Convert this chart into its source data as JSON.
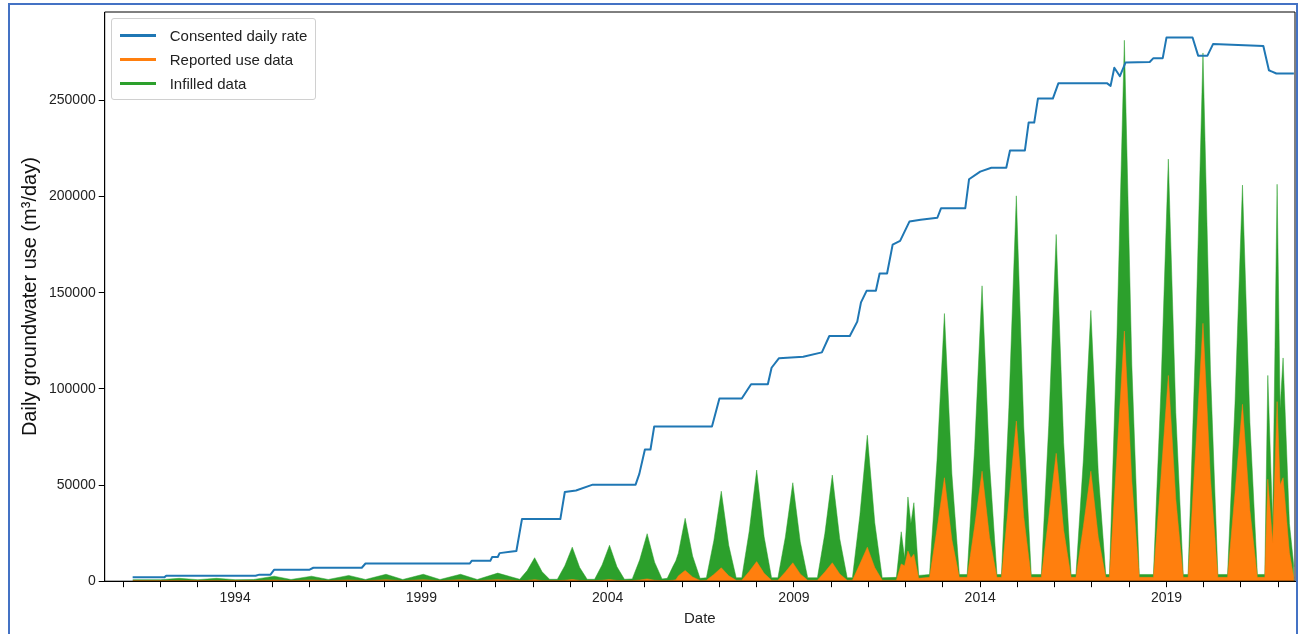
{
  "chart_data": {
    "type": "line",
    "xlabel": "Date",
    "ylabel": "Daily groundwater use (m³/day)",
    "xlim": [
      1990.5,
      2022.45
    ],
    "ylim": [
      0,
      296000
    ],
    "xticks": [
      {
        "value": 1991,
        "label": null
      },
      {
        "value": 1992,
        "label": null
      },
      {
        "value": 1993,
        "label": null
      },
      1994,
      {
        "value": 1995,
        "label": null
      },
      {
        "value": 1996,
        "label": null
      },
      {
        "value": 1997,
        "label": null
      },
      {
        "value": 1998,
        "label": null
      },
      1999,
      {
        "value": 2000,
        "label": null
      },
      {
        "value": 2001,
        "label": null
      },
      {
        "value": 2002,
        "label": null
      },
      {
        "value": 2003,
        "label": null
      },
      2004,
      {
        "value": 2005,
        "label": null
      },
      {
        "value": 2006,
        "label": null
      },
      {
        "value": 2007,
        "label": null
      },
      {
        "value": 2008,
        "label": null
      },
      2009,
      {
        "value": 2010,
        "label": null
      },
      {
        "value": 2011,
        "label": null
      },
      {
        "value": 2012,
        "label": null
      },
      {
        "value": 2013,
        "label": null
      },
      2014,
      {
        "value": 2015,
        "label": null
      },
      {
        "value": 2016,
        "label": null
      },
      {
        "value": 2017,
        "label": null
      },
      {
        "value": 2018,
        "label": null
      },
      2019,
      {
        "value": 2020,
        "label": null
      },
      {
        "value": 2021,
        "label": null
      },
      {
        "value": 2022,
        "label": null
      }
    ],
    "yticks": [
      0,
      50000,
      100000,
      150000,
      200000,
      250000
    ],
    "legend": "top left",
    "x": [
      1991.25,
      1992.0,
      1992.5,
      1993.0,
      1993.5,
      1994.0,
      1994.5,
      1995.05,
      1995.5,
      1996.05,
      1996.5,
      1997.05,
      1997.5,
      1998.05,
      1998.5,
      1999.05,
      1999.5,
      2000.05,
      2000.5,
      2001.05,
      2001.64,
      2001.84,
      2002.04,
      2002.24,
      2002.44,
      2002.65,
      2002.85,
      2003.05,
      2003.25,
      2003.45,
      2003.65,
      2003.85,
      2004.05,
      2004.25,
      2004.45,
      2004.66,
      2004.86,
      2005.06,
      2005.26,
      2005.46,
      2005.6,
      2005.75,
      2005.83,
      2005.9,
      2006.08,
      2006.28,
      2006.48,
      2006.65,
      2006.85,
      2007.05,
      2007.25,
      2007.45,
      2007.6,
      2007.8,
      2008.0,
      2008.2,
      2008.4,
      2008.57,
      2008.77,
      2008.97,
      2009.17,
      2009.37,
      2009.63,
      2009.83,
      2010.03,
      2010.23,
      2010.43,
      2010.57,
      2010.77,
      2010.97,
      2011.17,
      2011.37,
      2011.75,
      2011.88,
      2011.97,
      2012.06,
      2012.14,
      2012.22,
      2012.35,
      2012.64,
      2012.84,
      2013.04,
      2013.24,
      2013.44,
      2013.65,
      2013.85,
      2014.05,
      2014.25,
      2014.45,
      2014.57,
      2014.77,
      2014.97,
      2015.17,
      2015.37,
      2015.64,
      2015.84,
      2016.04,
      2016.24,
      2016.44,
      2016.57,
      2016.77,
      2016.97,
      2017.17,
      2017.37,
      2017.47,
      2017.67,
      2017.87,
      2018.07,
      2018.27,
      2018.65,
      2018.85,
      2019.05,
      2019.25,
      2019.45,
      2019.58,
      2019.78,
      2019.98,
      2020.18,
      2020.38,
      2020.64,
      2020.84,
      2021.04,
      2021.24,
      2021.44,
      2021.64,
      2021.72,
      2021.85,
      2021.97,
      2022.05,
      2022.13,
      2022.3,
      2022.42
    ],
    "series": [
      {
        "name": "Consented daily rate",
        "color": "#1f77b4",
        "x": [
          1991.25,
          1992.1,
          1992.15,
          1994.55,
          1994.65,
          1994.95,
          1995.05,
          1996.0,
          1996.1,
          1997.4,
          1997.5,
          2000.3,
          2000.35,
          2000.85,
          2000.9,
          2001.05,
          2001.1,
          2001.55,
          2001.7,
          2002.73,
          2002.85,
          2003.15,
          2003.6,
          2004.75,
          2004.85,
          2005.0,
          2005.15,
          2005.25,
          2006.8,
          2007.0,
          2007.6,
          2007.85,
          2008.3,
          2008.4,
          2008.6,
          2009.25,
          2009.75,
          2009.95,
          2010.5,
          2010.7,
          2010.8,
          2010.95,
          2011.2,
          2011.3,
          2011.5,
          2011.65,
          2011.85,
          2012.1,
          2012.4,
          2012.85,
          2012.95,
          2013.6,
          2013.7,
          2014.0,
          2014.3,
          2014.7,
          2014.8,
          2015.2,
          2015.3,
          2015.45,
          2015.55,
          2015.95,
          2016.1,
          2017.4,
          2017.5,
          2017.6,
          2017.75,
          2017.9,
          2018.55,
          2018.65,
          2018.9,
          2019.0,
          2019.7,
          2019.85,
          2020.1,
          2020.25,
          2021.6,
          2021.75,
          2021.95,
          2022.42
        ],
        "values": [
          2000,
          2000,
          2800,
          2800,
          3400,
          3400,
          6000,
          6000,
          7000,
          7000,
          9200,
          9200,
          10600,
          10600,
          12600,
          12600,
          14600,
          15700,
          32300,
          32300,
          46400,
          47200,
          50200,
          50200,
          55800,
          68500,
          68500,
          80500,
          80500,
          95000,
          95000,
          102400,
          102400,
          111000,
          116000,
          116700,
          119000,
          127500,
          127500,
          135000,
          145000,
          151000,
          151000,
          160000,
          160000,
          175000,
          177000,
          187000,
          188000,
          189000,
          194000,
          194000,
          209000,
          213000,
          215000,
          215000,
          224000,
          224000,
          238500,
          238500,
          251000,
          251000,
          259000,
          259000,
          257600,
          267000,
          262600,
          269700,
          270000,
          272000,
          272000,
          282700,
          282700,
          273300,
          273300,
          279300,
          278300,
          265700,
          264000,
          264000
        ]
      },
      {
        "name": "Reported use data",
        "color": "#ff7f0e",
        "type": "area",
        "values": [
          300,
          300,
          400,
          300,
          400,
          300,
          300,
          600,
          300,
          600,
          300,
          600,
          300,
          700,
          300,
          700,
          300,
          700,
          300,
          800,
          300,
          400,
          800,
          300,
          300,
          300,
          500,
          900,
          400,
          300,
          300,
          500,
          900,
          400,
          300,
          300,
          600,
          1200,
          500,
          300,
          300,
          500,
          800,
          2800,
          5600,
          2200,
          400,
          500,
          3500,
          7000,
          2800,
          500,
          500,
          5100,
          10200,
          4100,
          500,
          500,
          4800,
          9600,
          3800,
          500,
          500,
          4800,
          9600,
          3800,
          500,
          500,
          8900,
          17700,
          7100,
          500,
          500,
          9000,
          8000,
          15700,
          12000,
          14000,
          1500,
          2000,
          27000,
          53800,
          21500,
          2000,
          2000,
          28600,
          57200,
          22900,
          2000,
          2000,
          41700,
          83300,
          33300,
          2000,
          2000,
          33300,
          66500,
          26600,
          2000,
          2000,
          28600,
          57200,
          22900,
          2000,
          2000,
          65100,
          130100,
          52000,
          2000,
          2000,
          53500,
          107000,
          42800,
          2000,
          2000,
          67100,
          134100,
          53600,
          2000,
          2000,
          46000,
          92000,
          36800,
          2000,
          2000,
          53000,
          20000,
          93400,
          50000,
          53800,
          15000,
          1500
        ]
      },
      {
        "name": "Infilled data",
        "color": "#2ca02c",
        "type": "area",
        "values": [
          800,
          800,
          1500,
          800,
          1500,
          800,
          900,
          2600,
          900,
          2600,
          900,
          3000,
          900,
          3600,
          900,
          3600,
          900,
          3600,
          900,
          4200,
          1000,
          5500,
          12200,
          4900,
          1000,
          1000,
          8000,
          17700,
          7100,
          1000,
          1000,
          8400,
          18700,
          7500,
          1000,
          1200,
          11100,
          24700,
          9900,
          1200,
          1500,
          7600,
          10600,
          14700,
          32700,
          13100,
          1500,
          1800,
          21100,
          46800,
          18700,
          1800,
          1800,
          26000,
          57800,
          23100,
          1800,
          1800,
          23000,
          51200,
          20500,
          1800,
          1800,
          24800,
          55200,
          22100,
          1800,
          1800,
          34200,
          75900,
          30400,
          1800,
          2000,
          25700,
          12000,
          43800,
          30000,
          40800,
          3000,
          3500,
          62600,
          139200,
          55700,
          3500,
          3500,
          69100,
          153600,
          61400,
          3500,
          3500,
          90200,
          200400,
          80200,
          3500,
          3500,
          81100,
          180300,
          72100,
          3500,
          3500,
          63400,
          140800,
          56300,
          3500,
          3500,
          126600,
          281300,
          112500,
          3500,
          3500,
          98800,
          219500,
          87800,
          3500,
          3500,
          123600,
          274700,
          109900,
          3500,
          3500,
          92700,
          206000,
          82400,
          3500,
          3500,
          107000,
          30000,
          206400,
          90000,
          116100,
          30000,
          7600
        ]
      }
    ]
  }
}
